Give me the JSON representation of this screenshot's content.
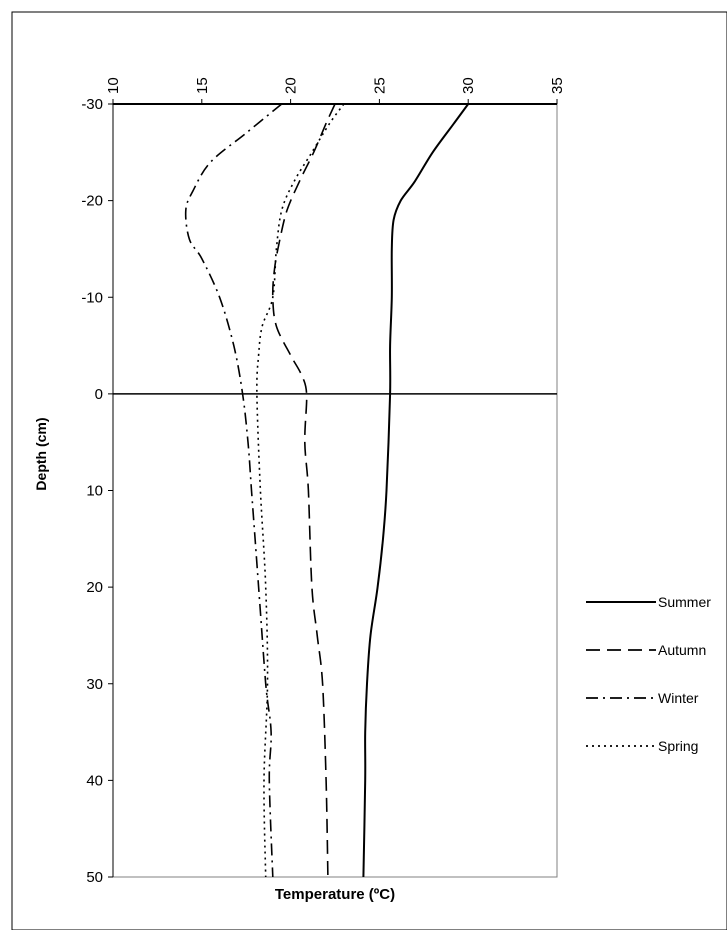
{
  "chart_data": {
    "type": "line",
    "title": "",
    "xlabel": "Temperature (ºC)",
    "ylabel": "Depth (cm)",
    "xlim": [
      10,
      35
    ],
    "ylim": [
      -30,
      50
    ],
    "x_axis_position": "top",
    "y_inverted": true,
    "grid": false,
    "legend_position": "right",
    "x_ticks": [
      "10",
      "15",
      "20",
      "25",
      "30",
      "35"
    ],
    "y_ticks": [
      "-30",
      "-20",
      "-10",
      "0",
      "10",
      "20",
      "30",
      "40",
      "50"
    ],
    "series": [
      {
        "name": "Summer",
        "dash": "solid",
        "x": [
          30,
          29.2,
          28.0,
          27.0,
          26.2,
          25.8,
          25.7,
          25.7,
          25.6,
          25.6,
          25.4,
          25.2,
          24.9,
          24.5,
          24.3,
          24.2,
          24.2,
          24.1
        ],
        "y": [
          -30,
          -28,
          -25,
          -22,
          -20,
          -18,
          -15,
          -10,
          -5,
          0,
          10,
          15,
          20,
          25,
          30,
          35,
          40,
          50
        ]
      },
      {
        "name": "Autumn",
        "dash": "long-dash",
        "x": [
          22.5,
          22.0,
          21.3,
          20.5,
          19.8,
          19.4,
          19.1,
          19.0,
          19.2,
          20.0,
          20.6,
          20.9,
          20.8,
          21.0,
          21.2,
          21.5,
          21.8,
          22.0,
          22.1
        ],
        "y": [
          -30,
          -28,
          -25,
          -22,
          -19,
          -16,
          -13,
          -10,
          -7,
          -4,
          -2,
          0,
          5,
          10,
          20,
          25,
          30,
          40,
          50
        ]
      },
      {
        "name": "Winter",
        "dash": "dash-dot",
        "x": [
          19.5,
          17.5,
          15.5,
          14.5,
          14.1,
          14.3,
          15.0,
          16.0,
          16.8,
          17.3,
          17.6,
          17.8,
          18.2,
          18.6,
          18.9,
          18.8,
          19.0
        ],
        "y": [
          -30,
          -27,
          -24,
          -21,
          -19,
          -16,
          -14,
          -10,
          -5,
          0,
          5,
          10,
          20,
          30,
          35,
          40,
          50
        ]
      },
      {
        "name": "Spring",
        "dash": "dotted",
        "x": [
          23.0,
          22.2,
          21.2,
          20.2,
          19.5,
          19.2,
          19.0,
          18.4,
          18.2,
          18.1,
          18.3,
          18.6,
          18.7,
          18.5,
          18.6
        ],
        "y": [
          -30,
          -28,
          -25,
          -22,
          -19,
          -15,
          -10,
          -7,
          -4,
          0,
          10,
          20,
          30,
          40,
          50
        ]
      }
    ]
  }
}
